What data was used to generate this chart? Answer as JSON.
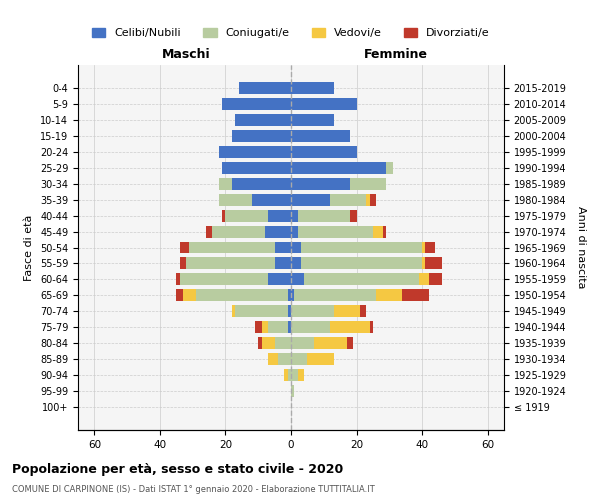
{
  "age_groups": [
    "100+",
    "95-99",
    "90-94",
    "85-89",
    "80-84",
    "75-79",
    "70-74",
    "65-69",
    "60-64",
    "55-59",
    "50-54",
    "45-49",
    "40-44",
    "35-39",
    "30-34",
    "25-29",
    "20-24",
    "15-19",
    "10-14",
    "5-9",
    "0-4"
  ],
  "birth_years": [
    "≤ 1919",
    "1920-1924",
    "1925-1929",
    "1930-1934",
    "1935-1939",
    "1940-1944",
    "1945-1949",
    "1950-1954",
    "1955-1959",
    "1960-1964",
    "1965-1969",
    "1970-1974",
    "1975-1979",
    "1980-1984",
    "1985-1989",
    "1990-1994",
    "1995-1999",
    "2000-2004",
    "2005-2009",
    "2010-2014",
    "2015-2019"
  ],
  "colors": {
    "celibe": "#4472C4",
    "coniugato": "#B8CCA0",
    "vedovo": "#F5C842",
    "divorziato": "#C0392B"
  },
  "maschi": {
    "celibe": [
      0,
      0,
      0,
      0,
      0,
      1,
      1,
      1,
      7,
      5,
      5,
      8,
      7,
      12,
      18,
      21,
      22,
      18,
      17,
      21,
      16
    ],
    "coniugato": [
      0,
      0,
      1,
      4,
      5,
      6,
      16,
      28,
      27,
      27,
      26,
      16,
      13,
      10,
      4,
      0,
      0,
      0,
      0,
      0,
      0
    ],
    "vedovo": [
      0,
      0,
      1,
      3,
      4,
      2,
      1,
      4,
      0,
      0,
      0,
      0,
      0,
      0,
      0,
      0,
      0,
      0,
      0,
      0,
      0
    ],
    "divorziato": [
      0,
      0,
      0,
      0,
      1,
      2,
      0,
      2,
      1,
      2,
      3,
      2,
      1,
      0,
      0,
      0,
      0,
      0,
      0,
      0,
      0
    ]
  },
  "femmine": {
    "nubile": [
      0,
      0,
      0,
      0,
      0,
      0,
      0,
      1,
      4,
      3,
      3,
      2,
      2,
      12,
      18,
      29,
      20,
      18,
      13,
      20,
      13
    ],
    "coniugata": [
      0,
      1,
      2,
      5,
      7,
      12,
      13,
      25,
      35,
      37,
      37,
      23,
      16,
      11,
      11,
      2,
      0,
      0,
      0,
      0,
      0
    ],
    "vedova": [
      0,
      0,
      2,
      8,
      10,
      12,
      8,
      8,
      3,
      1,
      1,
      3,
      0,
      1,
      0,
      0,
      0,
      0,
      0,
      0,
      0
    ],
    "divorziata": [
      0,
      0,
      0,
      0,
      2,
      1,
      2,
      8,
      4,
      5,
      3,
      1,
      2,
      2,
      0,
      0,
      0,
      0,
      0,
      0,
      0
    ]
  },
  "title": "Popolazione per età, sesso e stato civile - 2020",
  "subtitle": "COMUNE DI CARPINONE (IS) - Dati ISTAT 1° gennaio 2020 - Elaborazione TUTTITALIA.IT",
  "xlabel_left": "Maschi",
  "xlabel_right": "Femmine",
  "ylabel_left": "Fasce di età",
  "ylabel_right": "Anni di nascita",
  "xlim": 65,
  "legend_labels": [
    "Celibi/Nubili",
    "Coniugati/e",
    "Vedovi/e",
    "Divorziati/e"
  ],
  "bg_color": "#f5f5f5",
  "grid_color": "#cccccc"
}
